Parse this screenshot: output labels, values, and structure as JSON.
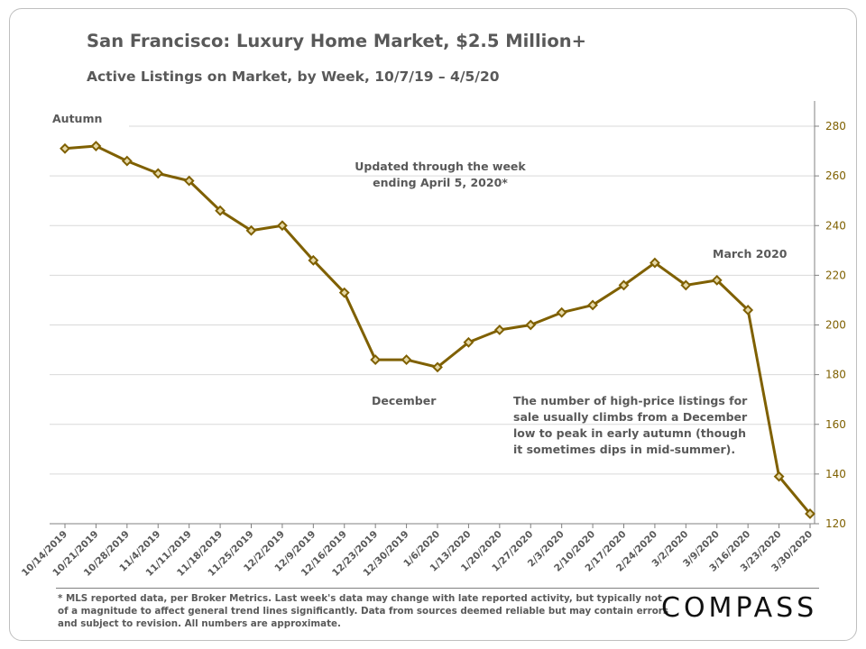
{
  "title": "San Francisco: Luxury Home Market, $2.5 Million+",
  "subtitle": "Active Listings on Market, by Week, 10/7/19 – 4/5/20",
  "footnote": "* MLS reported data, per Broker Metrics. Last week's data may change with late reported activity, but typically not of a magnitude to affect general trend lines significantly. Data from sources deemed reliable but may contain errors and subject to revision. All numbers are approximate.",
  "logo": "COMPASS",
  "chart_data": {
    "type": "line",
    "title": "San Francisco: Luxury Home Market, $2.5 Million+",
    "subtitle": "Active Listings on Market, by Week, 10/7/19 – 4/5/20",
    "xlabel": "",
    "ylabel": "",
    "ylim": [
      120,
      280
    ],
    "yticks": [
      120,
      140,
      160,
      180,
      200,
      220,
      240,
      260,
      280
    ],
    "y_axis_side": "right",
    "grid": true,
    "line_color": "#7f6000",
    "marker": "diamond",
    "categories": [
      "10/14/2019",
      "10/21/2019",
      "10/28/2019",
      "11/4/2019",
      "11/11/2019",
      "11/18/2019",
      "11/25/2019",
      "12/2/2019",
      "12/9/2019",
      "12/16/2019",
      "12/23/2019",
      "12/30/2019",
      "1/6/2020",
      "1/13/2020",
      "1/20/2020",
      "1/27/2020",
      "2/3/2020",
      "2/10/2020",
      "2/17/2020",
      "2/24/2020",
      "3/2/2020",
      "3/9/2020",
      "3/16/2020",
      "3/23/2020",
      "3/30/2020"
    ],
    "values": [
      271,
      272,
      266,
      261,
      258,
      246,
      238,
      240,
      226,
      213,
      186,
      186,
      183,
      193,
      198,
      200,
      205,
      208,
      216,
      225,
      216,
      218,
      206,
      139,
      124
    ],
    "annotations": {
      "autumn": "Autumn",
      "updated": [
        "Updated through the week",
        "ending April 5, 2020*"
      ],
      "march": "March 2020",
      "december": "December",
      "note": [
        "The number of high-price listings for",
        "sale usually climbs from a December",
        "low to peak in early autumn (though",
        "it sometimes dips in mid-summer)."
      ]
    }
  }
}
